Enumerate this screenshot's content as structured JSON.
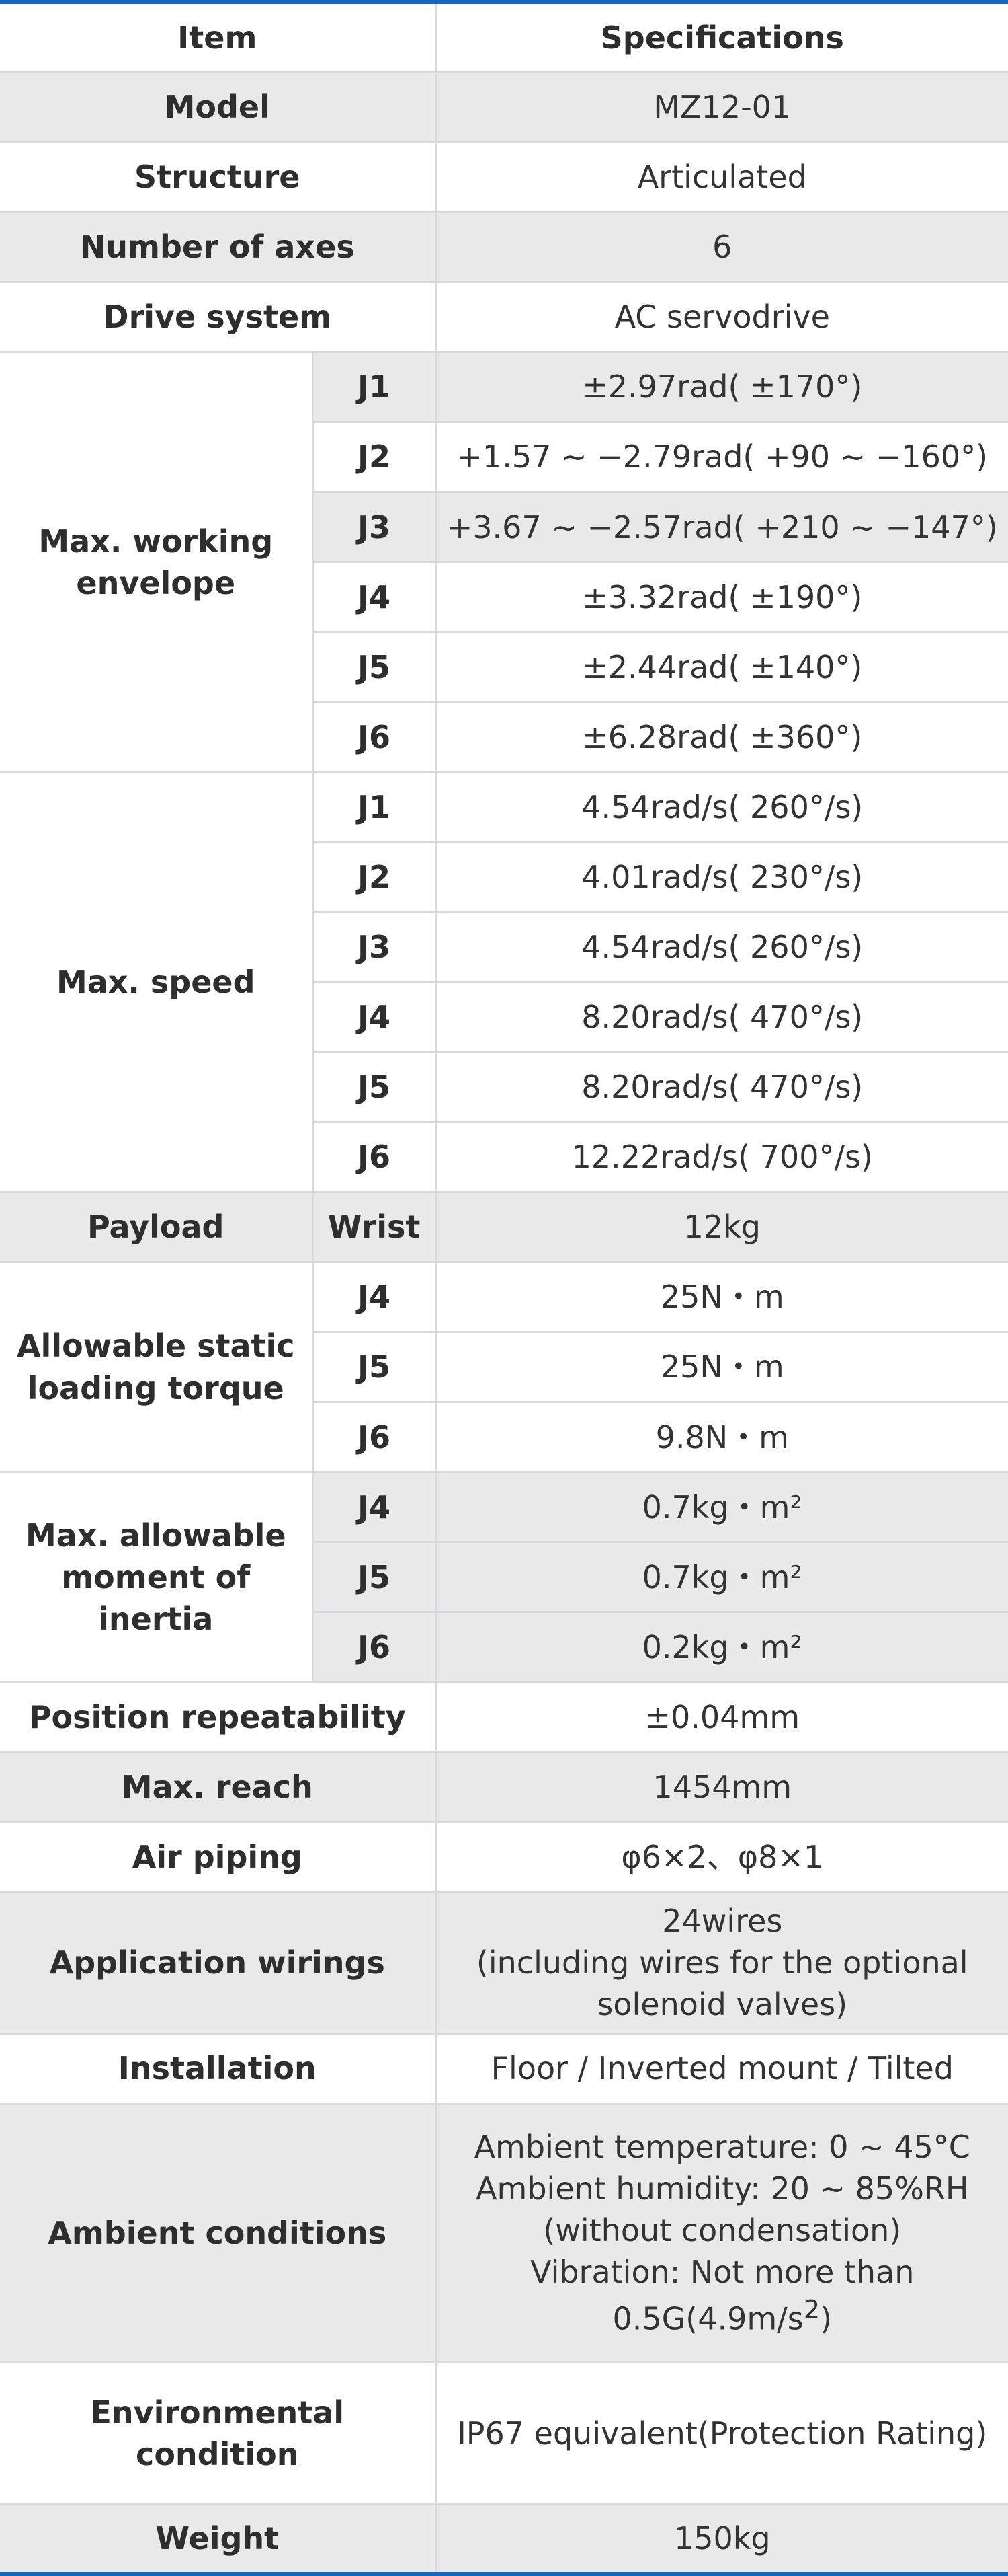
{
  "header": {
    "item": "Item",
    "specifications": "Specifications"
  },
  "rows": {
    "model": {
      "label": "Model",
      "value": "MZ12-01"
    },
    "structure": {
      "label": "Structure",
      "value": "Articulated"
    },
    "axes": {
      "label": "Number of axes",
      "value": "6"
    },
    "drive": {
      "label": "Drive system",
      "value": "AC servodrive"
    },
    "envelope": {
      "label_line1": "Max. working",
      "label_line2": "envelope",
      "items": [
        {
          "joint": "J1",
          "value": "±2.97rad( ±170°)"
        },
        {
          "joint": "J2",
          "value": "+1.57 ~ −2.79rad( +90 ~ −160°)"
        },
        {
          "joint": "J3",
          "value": "+3.67 ~ −2.57rad( +210 ~ −147°)"
        },
        {
          "joint": "J4",
          "value": "±3.32rad( ±190°)"
        },
        {
          "joint": "J5",
          "value": "±2.44rad( ±140°)"
        },
        {
          "joint": "J6",
          "value": "±6.28rad( ±360°)"
        }
      ]
    },
    "speed": {
      "label": "Max. speed",
      "items": [
        {
          "joint": "J1",
          "value": "4.54rad/s( 260°/s)"
        },
        {
          "joint": "J2",
          "value": "4.01rad/s( 230°/s)"
        },
        {
          "joint": "J3",
          "value": "4.54rad/s( 260°/s)"
        },
        {
          "joint": "J4",
          "value": "8.20rad/s( 470°/s)"
        },
        {
          "joint": "J5",
          "value": "8.20rad/s( 470°/s)"
        },
        {
          "joint": "J6",
          "value": "12.22rad/s( 700°/s)"
        }
      ]
    },
    "payload": {
      "label": "Payload",
      "sub": "Wrist",
      "value": "12kg"
    },
    "torque": {
      "label_line1": "Allowable static",
      "label_line2": "loading torque",
      "items": [
        {
          "joint": "J4",
          "value": "25N・m"
        },
        {
          "joint": "J5",
          "value": "25N・m"
        },
        {
          "joint": "J6",
          "value": "9.8N・m"
        }
      ]
    },
    "inertia": {
      "label_line1": "Max. allowable",
      "label_line2": "moment of",
      "label_line3": "inertia",
      "items": [
        {
          "joint": "J4",
          "value": "0.7kg・m²"
        },
        {
          "joint": "J5",
          "value": "0.7kg・m²"
        },
        {
          "joint": "J6",
          "value": "0.2kg・m²"
        }
      ]
    },
    "repeatability": {
      "label": "Position repeatability",
      "value": "±0.04mm"
    },
    "reach": {
      "label": "Max. reach",
      "value": "1454mm"
    },
    "air": {
      "label": "Air piping",
      "value": "φ6×2、φ8×1"
    },
    "wirings": {
      "label": "Application wirings",
      "value_line1": "24wires",
      "value_line2": "(including wires for the optional",
      "value_line3": "solenoid valves)"
    },
    "installation": {
      "label": "Installation",
      "value": "Floor / Inverted mount / Tilted"
    },
    "ambient": {
      "label": "Ambient conditions",
      "line1": "Ambient temperature: 0 ~ 45°C",
      "line2": "Ambient humidity: 20 ~ 85%RH",
      "line3": "(without condensation)",
      "line4": "Vibration: Not more than",
      "line5_main": "0.5G(4.9m/s",
      "line5_sup": "2",
      "line5_end": ")"
    },
    "environmental": {
      "label_line1": "Environmental",
      "label_line2": "condition",
      "value": "IP67 equivalent(Protection Rating)"
    },
    "weight": {
      "label": "Weight",
      "value": "150kg"
    }
  }
}
